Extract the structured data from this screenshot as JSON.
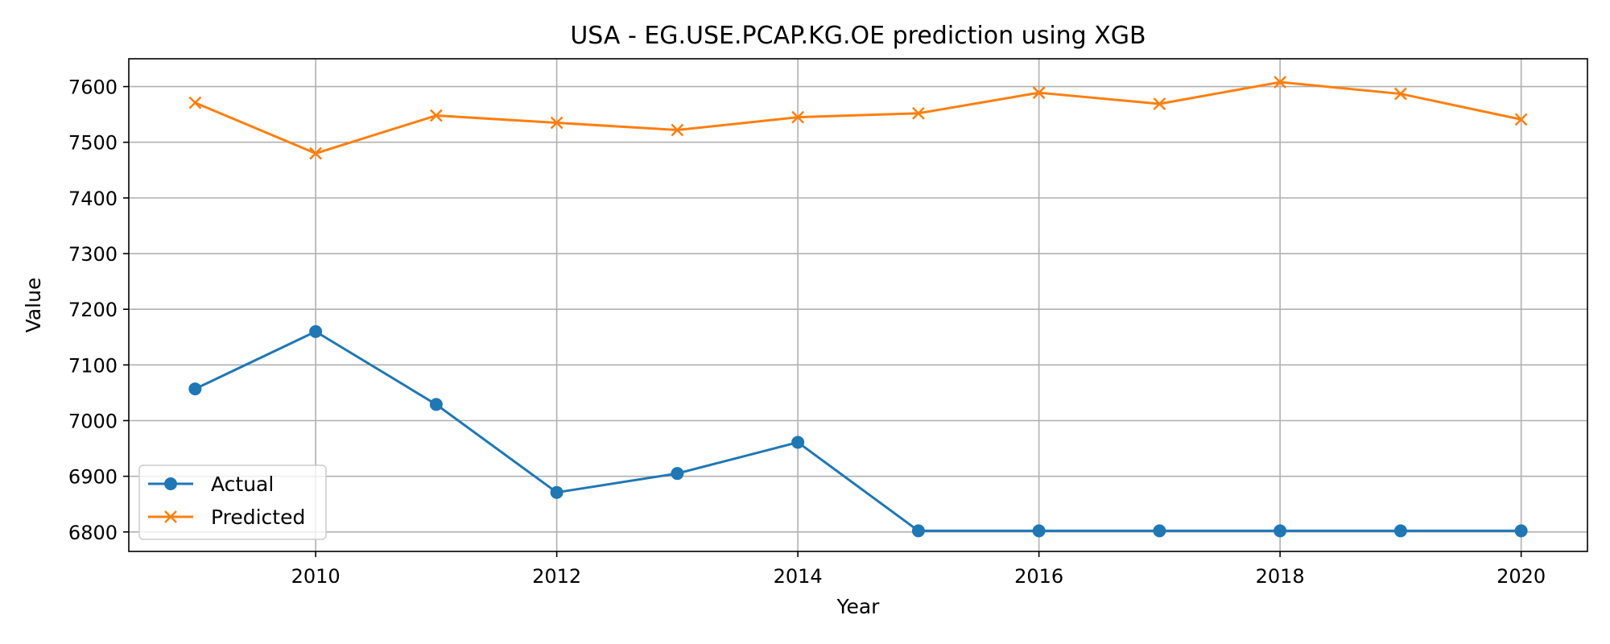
{
  "chart_data": {
    "type": "line",
    "title": "USA - EG.USE.PCAP.KG.OE prediction using XGB",
    "xlabel": "Year",
    "ylabel": "Value",
    "x": [
      2009,
      2010,
      2011,
      2012,
      2013,
      2014,
      2015,
      2016,
      2017,
      2018,
      2019,
      2020
    ],
    "xlim": [
      2008.45,
      2020.55
    ],
    "ylim": [
      6765,
      7650
    ],
    "xticks": [
      2010,
      2012,
      2014,
      2016,
      2018,
      2020
    ],
    "yticks": [
      6800,
      6900,
      7000,
      7100,
      7200,
      7300,
      7400,
      7500,
      7600
    ],
    "grid": true,
    "legend_position": "lower-left",
    "series": [
      {
        "name": "Actual",
        "color": "#1f77b4",
        "marker": "circle",
        "values": [
          7057,
          7160,
          7029,
          6871,
          6905,
          6961,
          6802,
          6802,
          6802,
          6802,
          6802,
          6802
        ]
      },
      {
        "name": "Predicted",
        "color": "#ff7f0e",
        "marker": "x",
        "values": [
          7571,
          7480,
          7548,
          7535,
          7522,
          7545,
          7552,
          7589,
          7569,
          7608,
          7587,
          7541
        ]
      }
    ]
  }
}
